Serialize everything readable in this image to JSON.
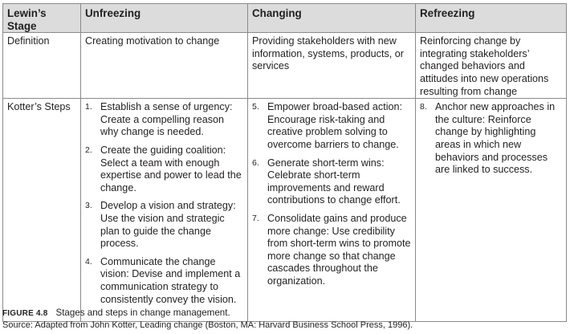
{
  "table": {
    "headers": [
      "Lewin’s Stage",
      "Unfreezing",
      "Changing",
      "Refreezing"
    ],
    "definition_row": {
      "label": "Definition",
      "unfreezing": "Creating motivation to change",
      "changing": "Providing stakeholders with new information, systems, products, or services",
      "refreezing": "Reinforcing change by integrating stakeholders’ changed behaviors and attitudes into new operations resulting from change"
    },
    "steps_row": {
      "label": "Kotter’s Steps",
      "unfreezing": [
        {
          "num": "1.",
          "text": "Establish a sense of urgency: Create a compelling reason why change is needed."
        },
        {
          "num": "2.",
          "text": "Create the guiding coalition: Select a team with enough expertise and power to lead the change."
        },
        {
          "num": "3.",
          "text": "Develop a vision and strategy: Use the vision and strategic plan to guide the change process."
        },
        {
          "num": "4.",
          "text": "Communicate the change vision: Devise and implement a communication strategy to consistently convey the vision."
        }
      ],
      "changing": [
        {
          "num": "5.",
          "text": "Empower broad-based action: Encourage risk-taking and creative problem solving to overcome barriers to change."
        },
        {
          "num": "6.",
          "text": "Generate short-term wins: Celebrate short-term improvements and reward contributions to change effort."
        },
        {
          "num": "7.",
          "text": "Consolidate gains and produce more change: Use credibility from short-term wins to promote more change so that change cascades throughout the organization."
        }
      ],
      "refreezing": [
        {
          "num": "8.",
          "text": "Anchor new approaches in the culture: Reinforce change by highlighting areas in which new behaviors and processes are linked to success."
        }
      ]
    }
  },
  "caption": {
    "figure_label": "FIGURE 4.8",
    "title": "Stages and steps in change management.",
    "source": "Source: Adapted from John Kotter, Leading change (Boston, MA: Harvard Business School Press, 1996)."
  }
}
